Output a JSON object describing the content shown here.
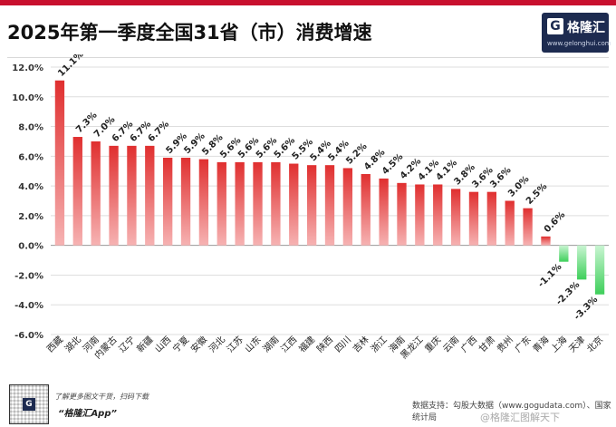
{
  "title": "2025年第一季度全国31省（市）消费增速",
  "logo": {
    "mark": "G",
    "name": "格隆汇",
    "url": "www.gelonghui.com"
  },
  "footer": {
    "hint": "了解更多图文干货，扫码下载",
    "app": "“格隆汇App”",
    "source": "数据支持：勾股大数据（www.gogudata.com）、国家统计局",
    "watermark": "@格隆汇图解天下",
    "qr_mark": "G"
  },
  "colors": {
    "positive": "#e02f2f",
    "negative": "#3ecf5a",
    "accent": "#1d2b50"
  },
  "chart_data": {
    "type": "bar",
    "title": "2025年第一季度全国31省（市）消费增速",
    "categories": [
      "西藏",
      "湖北",
      "河南",
      "内蒙古",
      "辽宁",
      "新疆",
      "山西",
      "宁夏",
      "安徽",
      "河北",
      "江苏",
      "山东",
      "湖南",
      "江西",
      "福建",
      "陕西",
      "四川",
      "吉林",
      "浙江",
      "海南",
      "黑龙江",
      "重庆",
      "云南",
      "广西",
      "甘肃",
      "贵州",
      "广东",
      "青海",
      "上海",
      "天津",
      "北京"
    ],
    "values": [
      11.1,
      7.3,
      7.0,
      6.7,
      6.7,
      6.7,
      5.9,
      5.9,
      5.8,
      5.6,
      5.6,
      5.6,
      5.6,
      5.5,
      5.4,
      5.4,
      5.2,
      4.8,
      4.5,
      4.2,
      4.1,
      4.1,
      3.8,
      3.6,
      3.6,
      3.0,
      2.5,
      0.6,
      -1.1,
      -2.3,
      -3.3
    ],
    "value_labels": [
      "11.1%",
      "7.3%",
      "7.0%",
      "6.7%",
      "6.7%",
      "6.7%",
      "5.9%",
      "5.9%",
      "5.8%",
      "5.6%",
      "5.6%",
      "5.6%",
      "5.6%",
      "5.5%",
      "5.4%",
      "5.4%",
      "5.2%",
      "4.8%",
      "4.5%",
      "4.2%",
      "4.1%",
      "4.1%",
      "3.8%",
      "3.6%",
      "3.6%",
      "3.0%",
      "2.5%",
      "0.6%",
      "-1.1%",
      "-2.3%",
      "-3.3%"
    ],
    "yticks": [
      12,
      10,
      8,
      6,
      4,
      2,
      0,
      -2,
      -4,
      -6
    ],
    "ytick_labels": [
      "12.0%",
      "10.0%",
      "8.0%",
      "6.0%",
      "4.0%",
      "2.0%",
      "0.0%",
      "-2.0%",
      "-4.0%",
      "-6.0%"
    ],
    "ylim": [
      -6,
      12
    ],
    "grid": true,
    "legend": "none"
  }
}
